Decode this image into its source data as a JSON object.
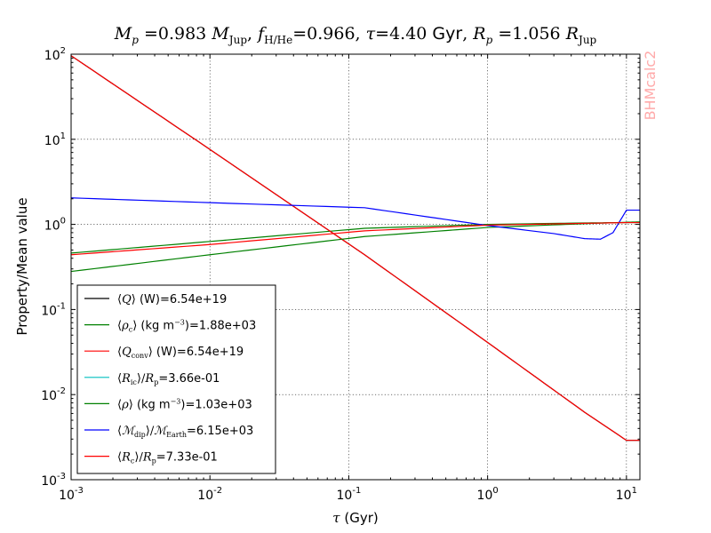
{
  "chart_data": {
    "type": "line",
    "title": "Mp =0.983 MJup, fH/He=0.966, τ=4.40 Gyr, Rp =1.056 RJup",
    "title_parts": {
      "mp": "M",
      "mp_sub": "p",
      "mp_val": " =0.983 ",
      "mjup": "M",
      "mjup_sub": "Jup",
      "f": "f",
      "f_sub": "H/He",
      "f_val": "=0.966, ",
      "tau": "τ",
      "tau_val": "=4.40 ",
      "gyr": "Gyr",
      "rp": "R",
      "rp_sub": "p",
      "rp_val": " =1.056 ",
      "rjup": "R",
      "rjup_sub": "Jup",
      "comma": ", "
    },
    "xlabel_sym": "τ",
    "xlabel_unit": " (Gyr)",
    "ylabel": "Property/Mean value",
    "watermark": "BHMcalc2",
    "xscale": "log",
    "yscale": "log",
    "xlim": [
      0.001,
      12.5
    ],
    "ylim": [
      0.001,
      100
    ],
    "grid": true,
    "legend_position": "lower-left",
    "x_ticks": [
      {
        "value": 0.001,
        "base": "10",
        "exp": "-3"
      },
      {
        "value": 0.01,
        "base": "10",
        "exp": "-2"
      },
      {
        "value": 0.1,
        "base": "10",
        "exp": "-1"
      },
      {
        "value": 1,
        "base": "10",
        "exp": "0"
      },
      {
        "value": 10,
        "base": "10",
        "exp": "1"
      }
    ],
    "y_ticks": [
      {
        "value": 0.001,
        "base": "10",
        "exp": "-3"
      },
      {
        "value": 0.01,
        "base": "10",
        "exp": "-2"
      },
      {
        "value": 0.1,
        "base": "10",
        "exp": "-1"
      },
      {
        "value": 1,
        "base": "10",
        "exp": "0"
      },
      {
        "value": 10,
        "base": "10",
        "exp": "1"
      },
      {
        "value": 100,
        "base": "10",
        "exp": "2"
      }
    ],
    "series": [
      {
        "name": "⟨Q⟩ (W)=6.54e+19",
        "sym": "Q",
        "sub": "",
        "after": " (W)=6.54e+19",
        "color": "#000000",
        "x": [
          0.001,
          0.01,
          0.13,
          1,
          5,
          10,
          12.5
        ],
        "y": [
          96,
          7.6,
          0.44,
          0.041,
          0.0062,
          0.0029,
          0.0029
        ]
      },
      {
        "name": "⟨ρc⟩ (kg m-3)=1.88e+03",
        "sym": "ρ",
        "sub": "c",
        "after": " (kg m",
        "sup": "−3",
        "after2": ")=1.88e+03",
        "color": "#008000",
        "x": [
          0.001,
          0.01,
          0.13,
          1,
          5,
          10,
          12.5
        ],
        "y": [
          0.46,
          0.63,
          0.9,
          1.0,
          1.04,
          1.05,
          1.05
        ]
      },
      {
        "name": "⟨Qconv⟩ (W)=6.54e+19",
        "sym": "Q",
        "sub": "conv",
        "after": " (W)=6.54e+19",
        "color": "#ff0000",
        "x": [
          0.001,
          0.01,
          0.13,
          1,
          5,
          10,
          12.5
        ],
        "y": [
          96,
          7.6,
          0.44,
          0.041,
          0.0062,
          0.0029,
          0.0029
        ]
      },
      {
        "name": "⟨Ric⟩/Rp=3.66e-01",
        "sym": "R",
        "sub": "ic",
        "after": "/",
        "after_sym": "R",
        "after_sub": "p",
        "after3": "=3.66e-01",
        "color": "#00bfbf",
        "x": [],
        "y": []
      },
      {
        "name": "⟨ρ⟩ (kg m-3)=1.03e+03",
        "sym": "ρ",
        "sub": "",
        "after": " (kg m",
        "sup": "−3",
        "after2": ")=1.03e+03",
        "color": "#008000",
        "x": [
          0.001,
          0.01,
          0.13,
          1,
          5,
          10,
          12.5
        ],
        "y": [
          0.28,
          0.44,
          0.72,
          0.92,
          1.02,
          1.06,
          1.07
        ]
      },
      {
        "name": "⟨Mdip⟩/MEarth=6.15e+03",
        "sym": "ℳ",
        "sub": "dip",
        "after": "/",
        "after_sym": "ℳ",
        "after_sub": "Earth",
        "after3": "=6.15e+03",
        "color": "#0000ff",
        "x": [
          0.001,
          0.01,
          0.13,
          1,
          3,
          5,
          6.5,
          8,
          10,
          12.5
        ],
        "y": [
          2.05,
          1.8,
          1.57,
          0.97,
          0.78,
          0.68,
          0.67,
          0.8,
          1.47,
          1.47
        ]
      },
      {
        "name": "⟨Rc⟩/Rp=7.33e-01",
        "sym": "R",
        "sub": "c",
        "after": "/",
        "after_sym": "R",
        "after_sub": "p",
        "after3": "=7.33e-01",
        "color": "#ff0000",
        "x": [
          0.001,
          0.01,
          0.13,
          1,
          5,
          10,
          12.5
        ],
        "y": [
          0.44,
          0.58,
          0.84,
          0.98,
          1.03,
          1.05,
          1.05
        ]
      }
    ]
  }
}
